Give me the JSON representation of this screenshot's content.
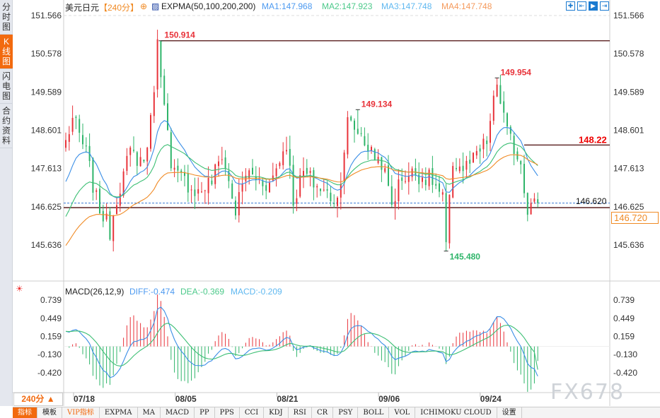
{
  "sidebar": {
    "tabs": [
      {
        "label": "分时图"
      },
      {
        "label": "K线图",
        "active": true
      },
      {
        "label": "闪电图"
      },
      {
        "label": "合约资料"
      }
    ]
  },
  "header": {
    "symbol": "美元日元",
    "period": "【240分】",
    "indicator": "EXPMA(50,100,200,200)",
    "ma1": "MA1:147.968",
    "ma2": "MA2:147.923",
    "ma3": "MA3:147.748",
    "ma4": "MA4:147.748"
  },
  "macd_header": {
    "title": "MACD(26,12,9)",
    "diff": "DIFF:-0.474",
    "dea": "DEA:-0.369",
    "macd": "MACD:-0.209"
  },
  "colors": {
    "up": "#e8333a",
    "down": "#2fb56a",
    "ma1": "#3a8ee6",
    "ma2": "#3cbf74",
    "ma3": "#f08a24",
    "hline": "#4a0a0a"
  },
  "price_box": "146.720",
  "watermark": "FX678",
  "period_selector": "240分 ▲",
  "bottom_tabs": [
    "指标",
    "模板",
    "VIP指标",
    "EXPMA",
    "MA",
    "MACD",
    "PP",
    "PPS",
    "CCI",
    "KDJ",
    "RSI",
    "CR",
    "PSY",
    "BOLL",
    "VOL",
    "ICHIMOKU CLOUD",
    "设置"
  ],
  "chart_data": [
    {
      "type": "candlestick",
      "title": "美元日元 240分",
      "y_ticks": [
        "151.566",
        "150.578",
        "149.589",
        "148.601",
        "147.613",
        "146.625",
        "145.636"
      ],
      "ylim": [
        145.636,
        151.566
      ],
      "x_ticks": [
        "07/18",
        "08/05",
        "08/21",
        "09/06",
        "09/24"
      ],
      "bars": 140,
      "close_keypoints": [
        [
          0,
          148.3
        ],
        [
          2,
          148.9
        ],
        [
          6,
          148.0
        ],
        [
          9,
          146.8
        ],
        [
          13,
          146.0
        ],
        [
          15,
          146.9
        ],
        [
          19,
          148.0
        ],
        [
          23,
          147.8
        ],
        [
          25,
          148.8
        ],
        [
          27,
          150.8
        ],
        [
          29,
          149.5
        ],
        [
          31,
          147.5
        ],
        [
          35,
          147.3
        ],
        [
          39,
          147.0
        ],
        [
          43,
          147.3
        ],
        [
          46,
          148.0
        ],
        [
          50,
          146.5
        ],
        [
          53,
          147.5
        ],
        [
          60,
          147.2
        ],
        [
          65,
          148.3
        ],
        [
          67,
          146.8
        ],
        [
          70,
          147.5
        ],
        [
          76,
          147.0
        ],
        [
          80,
          146.8
        ],
        [
          83,
          148.8
        ],
        [
          87,
          148.5
        ],
        [
          90,
          148.0
        ],
        [
          93,
          147.8
        ],
        [
          96,
          146.7
        ],
        [
          99,
          147.4
        ],
        [
          103,
          147.5
        ],
        [
          108,
          147.3
        ],
        [
          111,
          146.8
        ],
        [
          112,
          145.6
        ],
        [
          114,
          147.8
        ],
        [
          117,
          147.6
        ],
        [
          120,
          147.8
        ],
        [
          124,
          148.3
        ],
        [
          127,
          149.8
        ],
        [
          130,
          148.5
        ],
        [
          134,
          147.8
        ],
        [
          136,
          146.6
        ],
        [
          139,
          146.72
        ]
      ],
      "ema_init": [
        147.08,
        146.2,
        145.5
      ],
      "annotations": [
        {
          "label": "150.914",
          "value": 150.914,
          "bar": 28,
          "color": "red"
        },
        {
          "label": "149.134",
          "value": 149.134,
          "bar": 86,
          "color": "red"
        },
        {
          "label": "149.954",
          "value": 149.954,
          "bar": 127,
          "color": "red"
        },
        {
          "label": "145.480",
          "value": 145.48,
          "bar": 112,
          "color": "green"
        },
        {
          "label": "148.22",
          "value": 148.22,
          "bar": 135,
          "color": "red"
        },
        {
          "label": "146.620",
          "value": 146.62,
          "bar": 139,
          "color": "black"
        }
      ],
      "current_price": 146.72
    },
    {
      "type": "macd",
      "y_ticks": [
        "0.739",
        "0.449",
        "0.159",
        "-0.130",
        "-0.420"
      ],
      "ylim": [
        -0.42,
        0.739
      ],
      "diff": -0.474,
      "dea": -0.369,
      "macd": -0.209
    }
  ]
}
